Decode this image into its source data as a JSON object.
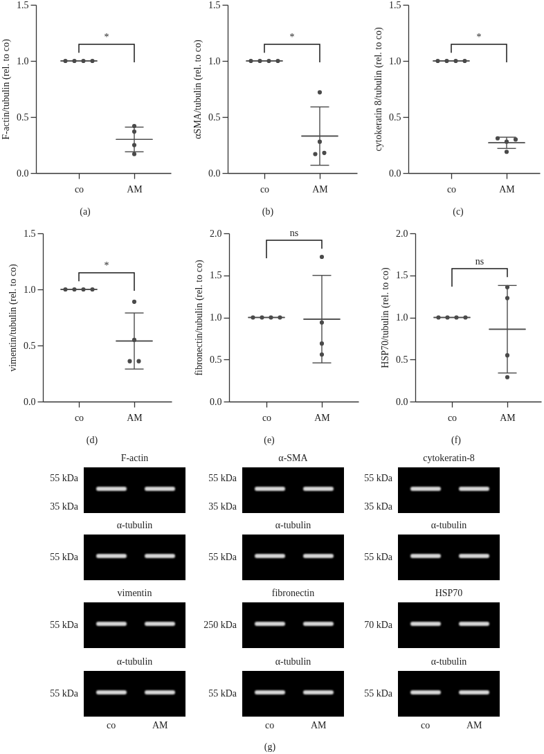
{
  "chart_data": [
    {
      "type": "scatter",
      "categories": [
        "co",
        "AM"
      ],
      "ylabel": "F-actin/tubulin (rel. to co)",
      "ylim": [
        0,
        1.5
      ],
      "yticks": [
        {
          "value": 0,
          "label": "0.0"
        },
        {
          "value": 0.5,
          "label": "0.5"
        },
        {
          "value": 1,
          "label": "1.0"
        },
        {
          "value": 1.5,
          "label": "1.5"
        }
      ],
      "marker": "circle",
      "annotations": [
        "*",
        "(a)"
      ],
      "series": [
        {
          "x": [
            "co",
            "co",
            "co",
            "co",
            "AM",
            "AM",
            "AM",
            "AM"
          ],
          "values": [
            1,
            1,
            1,
            1,
            0.42,
            0.37,
            0.25,
            0.17
          ],
          "color": "#4a4a4a"
        },
        {
          "type": "box",
          "color": "#4a4a4a",
          "boxes": [
            {
              "low": 1,
              "q1": 1,
              "median": 1,
              "q3": 1,
              "high": 1
            },
            {
              "low": 0.19,
              "q1": 0.3,
              "median": 0.3,
              "q3": 0.3,
              "high": 0.41
            }
          ]
        }
      ]
    },
    {
      "type": "scatter",
      "categories": [
        "co",
        "AM"
      ],
      "ylabel": "αSMA/tubulin (rel. to co)",
      "ylim": [
        0,
        1.5
      ],
      "yticks": [
        {
          "value": 0,
          "label": "0.0"
        },
        {
          "value": 0.5,
          "label": "0.5"
        },
        {
          "value": 1,
          "label": "1.0"
        },
        {
          "value": 1.5,
          "label": "1.5"
        }
      ],
      "marker": "circle",
      "annotations": [
        "*",
        "(b)"
      ],
      "series": [
        {
          "x": [
            "co",
            "co",
            "co",
            "co",
            "AM",
            "AM",
            "AM",
            "AM"
          ],
          "values": [
            1,
            1,
            1,
            1,
            0.72,
            0.28,
            0.17,
            0.18
          ],
          "color": "#4a4a4a"
        },
        {
          "type": "box",
          "color": "#4a4a4a",
          "boxes": [
            {
              "low": 1,
              "q1": 1,
              "median": 1,
              "q3": 1,
              "high": 1
            },
            {
              "low": 0.07,
              "q1": 0.33,
              "median": 0.33,
              "q3": 0.33,
              "high": 0.59
            }
          ]
        }
      ]
    },
    {
      "type": "scatter",
      "categories": [
        "co",
        "AM"
      ],
      "ylabel": "cytokeratin 8/tubulin (rel. to co)",
      "ylim": [
        0,
        1.5
      ],
      "yticks": [
        {
          "value": 0,
          "label": "0.0"
        },
        {
          "value": 0.5,
          "label": "0.5"
        },
        {
          "value": 1,
          "label": "1.0"
        },
        {
          "value": 1.5,
          "label": "1.5"
        }
      ],
      "marker": "circle",
      "annotations": [
        "*",
        "(c)"
      ],
      "series": [
        {
          "x": [
            "co",
            "co",
            "co",
            "co",
            "AM",
            "AM",
            "AM",
            "AM"
          ],
          "values": [
            1,
            1,
            1,
            1,
            0.31,
            0.28,
            0.3,
            0.19
          ],
          "color": "#4a4a4a"
        },
        {
          "type": "box",
          "color": "#4a4a4a",
          "boxes": [
            {
              "low": 1,
              "q1": 1,
              "median": 1,
              "q3": 1,
              "high": 1
            },
            {
              "low": 0.22,
              "q1": 0.27,
              "median": 0.27,
              "q3": 0.27,
              "high": 0.32
            }
          ]
        }
      ]
    },
    {
      "type": "scatter",
      "categories": [
        "co",
        "AM"
      ],
      "ylabel": "vimentin/tubulin (rel. to co)",
      "ylim": [
        0,
        1.5
      ],
      "yticks": [
        {
          "value": 0,
          "label": "0.0"
        },
        {
          "value": 0.5,
          "label": "0.5"
        },
        {
          "value": 1,
          "label": "1.0"
        },
        {
          "value": 1.5,
          "label": "1.5"
        }
      ],
      "marker": "circle",
      "annotations": [
        "*",
        "(d)"
      ],
      "series": [
        {
          "x": [
            "co",
            "co",
            "co",
            "co",
            "AM",
            "AM",
            "AM",
            "AM"
          ],
          "values": [
            1,
            1,
            1,
            1,
            0.89,
            0.55,
            0.36,
            0.36
          ],
          "color": "#4a4a4a"
        },
        {
          "type": "box",
          "color": "#4a4a4a",
          "boxes": [
            {
              "low": 1,
              "q1": 1,
              "median": 1,
              "q3": 1,
              "high": 1
            },
            {
              "low": 0.29,
              "q1": 0.54,
              "median": 0.54,
              "q3": 0.54,
              "high": 0.79
            }
          ]
        }
      ]
    },
    {
      "type": "scatter",
      "categories": [
        "co",
        "AM"
      ],
      "ylabel": "fibronectin/tubulin (rel. to co)",
      "ylim": [
        0,
        2
      ],
      "yticks": [
        {
          "value": 0,
          "label": "0.0"
        },
        {
          "value": 0.5,
          "label": "0.5"
        },
        {
          "value": 1,
          "label": "1.0"
        },
        {
          "value": 1.5,
          "label": "1.5"
        },
        {
          "value": 2,
          "label": "2.0"
        }
      ],
      "marker": "circle",
      "annotations": [
        "ns",
        "(e)"
      ],
      "series": [
        {
          "x": [
            "co",
            "co",
            "co",
            "co",
            "AM",
            "AM",
            "AM",
            "AM"
          ],
          "values": [
            1,
            1,
            1,
            1,
            1.72,
            0.94,
            0.69,
            0.56
          ],
          "color": "#4a4a4a"
        },
        {
          "type": "box",
          "color": "#4a4a4a",
          "boxes": [
            {
              "low": 1,
              "q1": 1,
              "median": 1,
              "q3": 1,
              "high": 1
            },
            {
              "low": 0.46,
              "q1": 0.98,
              "median": 0.98,
              "q3": 0.98,
              "high": 1.5
            }
          ]
        }
      ]
    },
    {
      "type": "scatter",
      "categories": [
        "co",
        "AM"
      ],
      "ylabel": "HSP70/tubulin (rel. to co)",
      "ylim": [
        0,
        2
      ],
      "yticks": [
        {
          "value": 0,
          "label": "0.0"
        },
        {
          "value": 0.5,
          "label": "0.5"
        },
        {
          "value": 1,
          "label": "1.0"
        },
        {
          "value": 1.5,
          "label": "1.5"
        },
        {
          "value": 2,
          "label": "2.0"
        }
      ],
      "marker": "circle",
      "annotations": [
        "ns",
        "(f)"
      ],
      "series": [
        {
          "x": [
            "co",
            "co",
            "co",
            "co",
            "AM",
            "AM",
            "AM",
            "AM"
          ],
          "values": [
            1,
            1,
            1,
            1,
            1.36,
            1.23,
            0.55,
            0.29
          ],
          "color": "#4a4a4a"
        },
        {
          "type": "box",
          "color": "#4a4a4a",
          "boxes": [
            {
              "low": 1,
              "q1": 1,
              "median": 1,
              "q3": 1,
              "high": 1
            },
            {
              "low": 0.34,
              "q1": 0.86,
              "median": 0.86,
              "q3": 0.86,
              "high": 1.38
            }
          ]
        }
      ]
    },
    {
      "type": "other",
      "title": "F-actin",
      "annotations": [
        "55 kDa",
        "35 kDa"
      ]
    },
    {
      "type": "other",
      "title": "α-SMA",
      "annotations": [
        "55 kDa",
        "35 kDa"
      ]
    },
    {
      "type": "other",
      "title": "cytokeratin-8",
      "annotations": [
        "55 kDa",
        "35 kDa"
      ]
    },
    {
      "type": "other",
      "title": "α-tubulin",
      "annotations": [
        "55 kDa"
      ]
    },
    {
      "type": "other",
      "title": "α-tubulin",
      "annotations": [
        "55 kDa"
      ]
    },
    {
      "type": "other",
      "title": "α-tubulin",
      "annotations": [
        "55 kDa"
      ]
    },
    {
      "type": "other",
      "title": "vimentin",
      "annotations": [
        "55 kDa"
      ]
    },
    {
      "type": "other",
      "title": "fibronectin",
      "annotations": [
        "250 kDa"
      ]
    },
    {
      "type": "other",
      "title": "HSP70",
      "annotations": [
        "70 kDa"
      ]
    },
    {
      "type": "other",
      "title": "α-tubulin",
      "annotations": [
        "55 kDa"
      ],
      "categories": [
        "co",
        "AM"
      ]
    },
    {
      "type": "other",
      "title": "α-tubulin",
      "annotations": [
        "55 kDa"
      ],
      "categories": [
        "co",
        "AM"
      ]
    },
    {
      "type": "other",
      "title": "α-tubulin",
      "annotations": [
        "55 kDa"
      ],
      "categories": [
        "co",
        "AM"
      ]
    },
    {
      "type": "other",
      "annotations": [
        "(g)"
      ]
    }
  ]
}
